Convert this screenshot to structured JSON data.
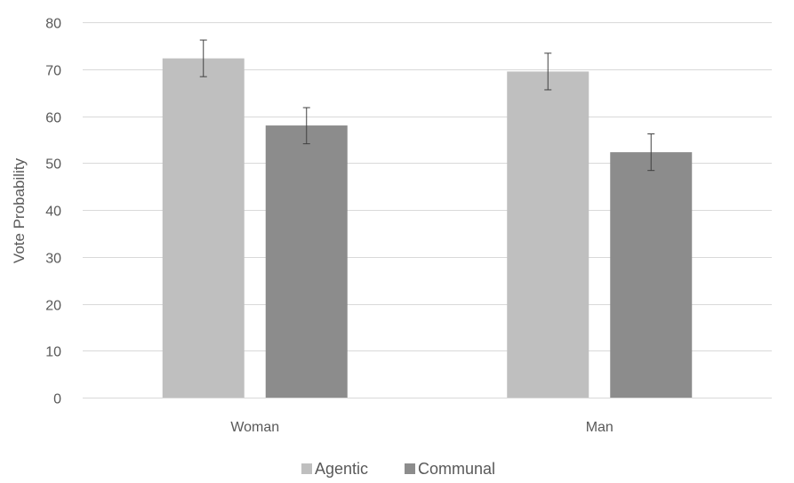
{
  "chart_data": {
    "type": "bar",
    "title": "",
    "xlabel": "",
    "ylabel": "Vote Probability",
    "ylim": [
      0,
      80
    ],
    "yticks": [
      0,
      10,
      20,
      30,
      40,
      50,
      60,
      70,
      80
    ],
    "grid": true,
    "legend_position": "bottom",
    "categories": [
      "Woman",
      "Man"
    ],
    "series": [
      {
        "name": "Agentic",
        "color": "#bfbfbf",
        "values": [
          72.3,
          69.5
        ],
        "error_low": [
          68.4,
          65.6
        ],
        "error_high": [
          76.2,
          73.4
        ]
      },
      {
        "name": "Communal",
        "color": "#8c8c8c",
        "values": [
          58.0,
          52.3
        ],
        "error_low": [
          54.1,
          48.4
        ],
        "error_high": [
          61.8,
          56.2
        ]
      }
    ]
  }
}
